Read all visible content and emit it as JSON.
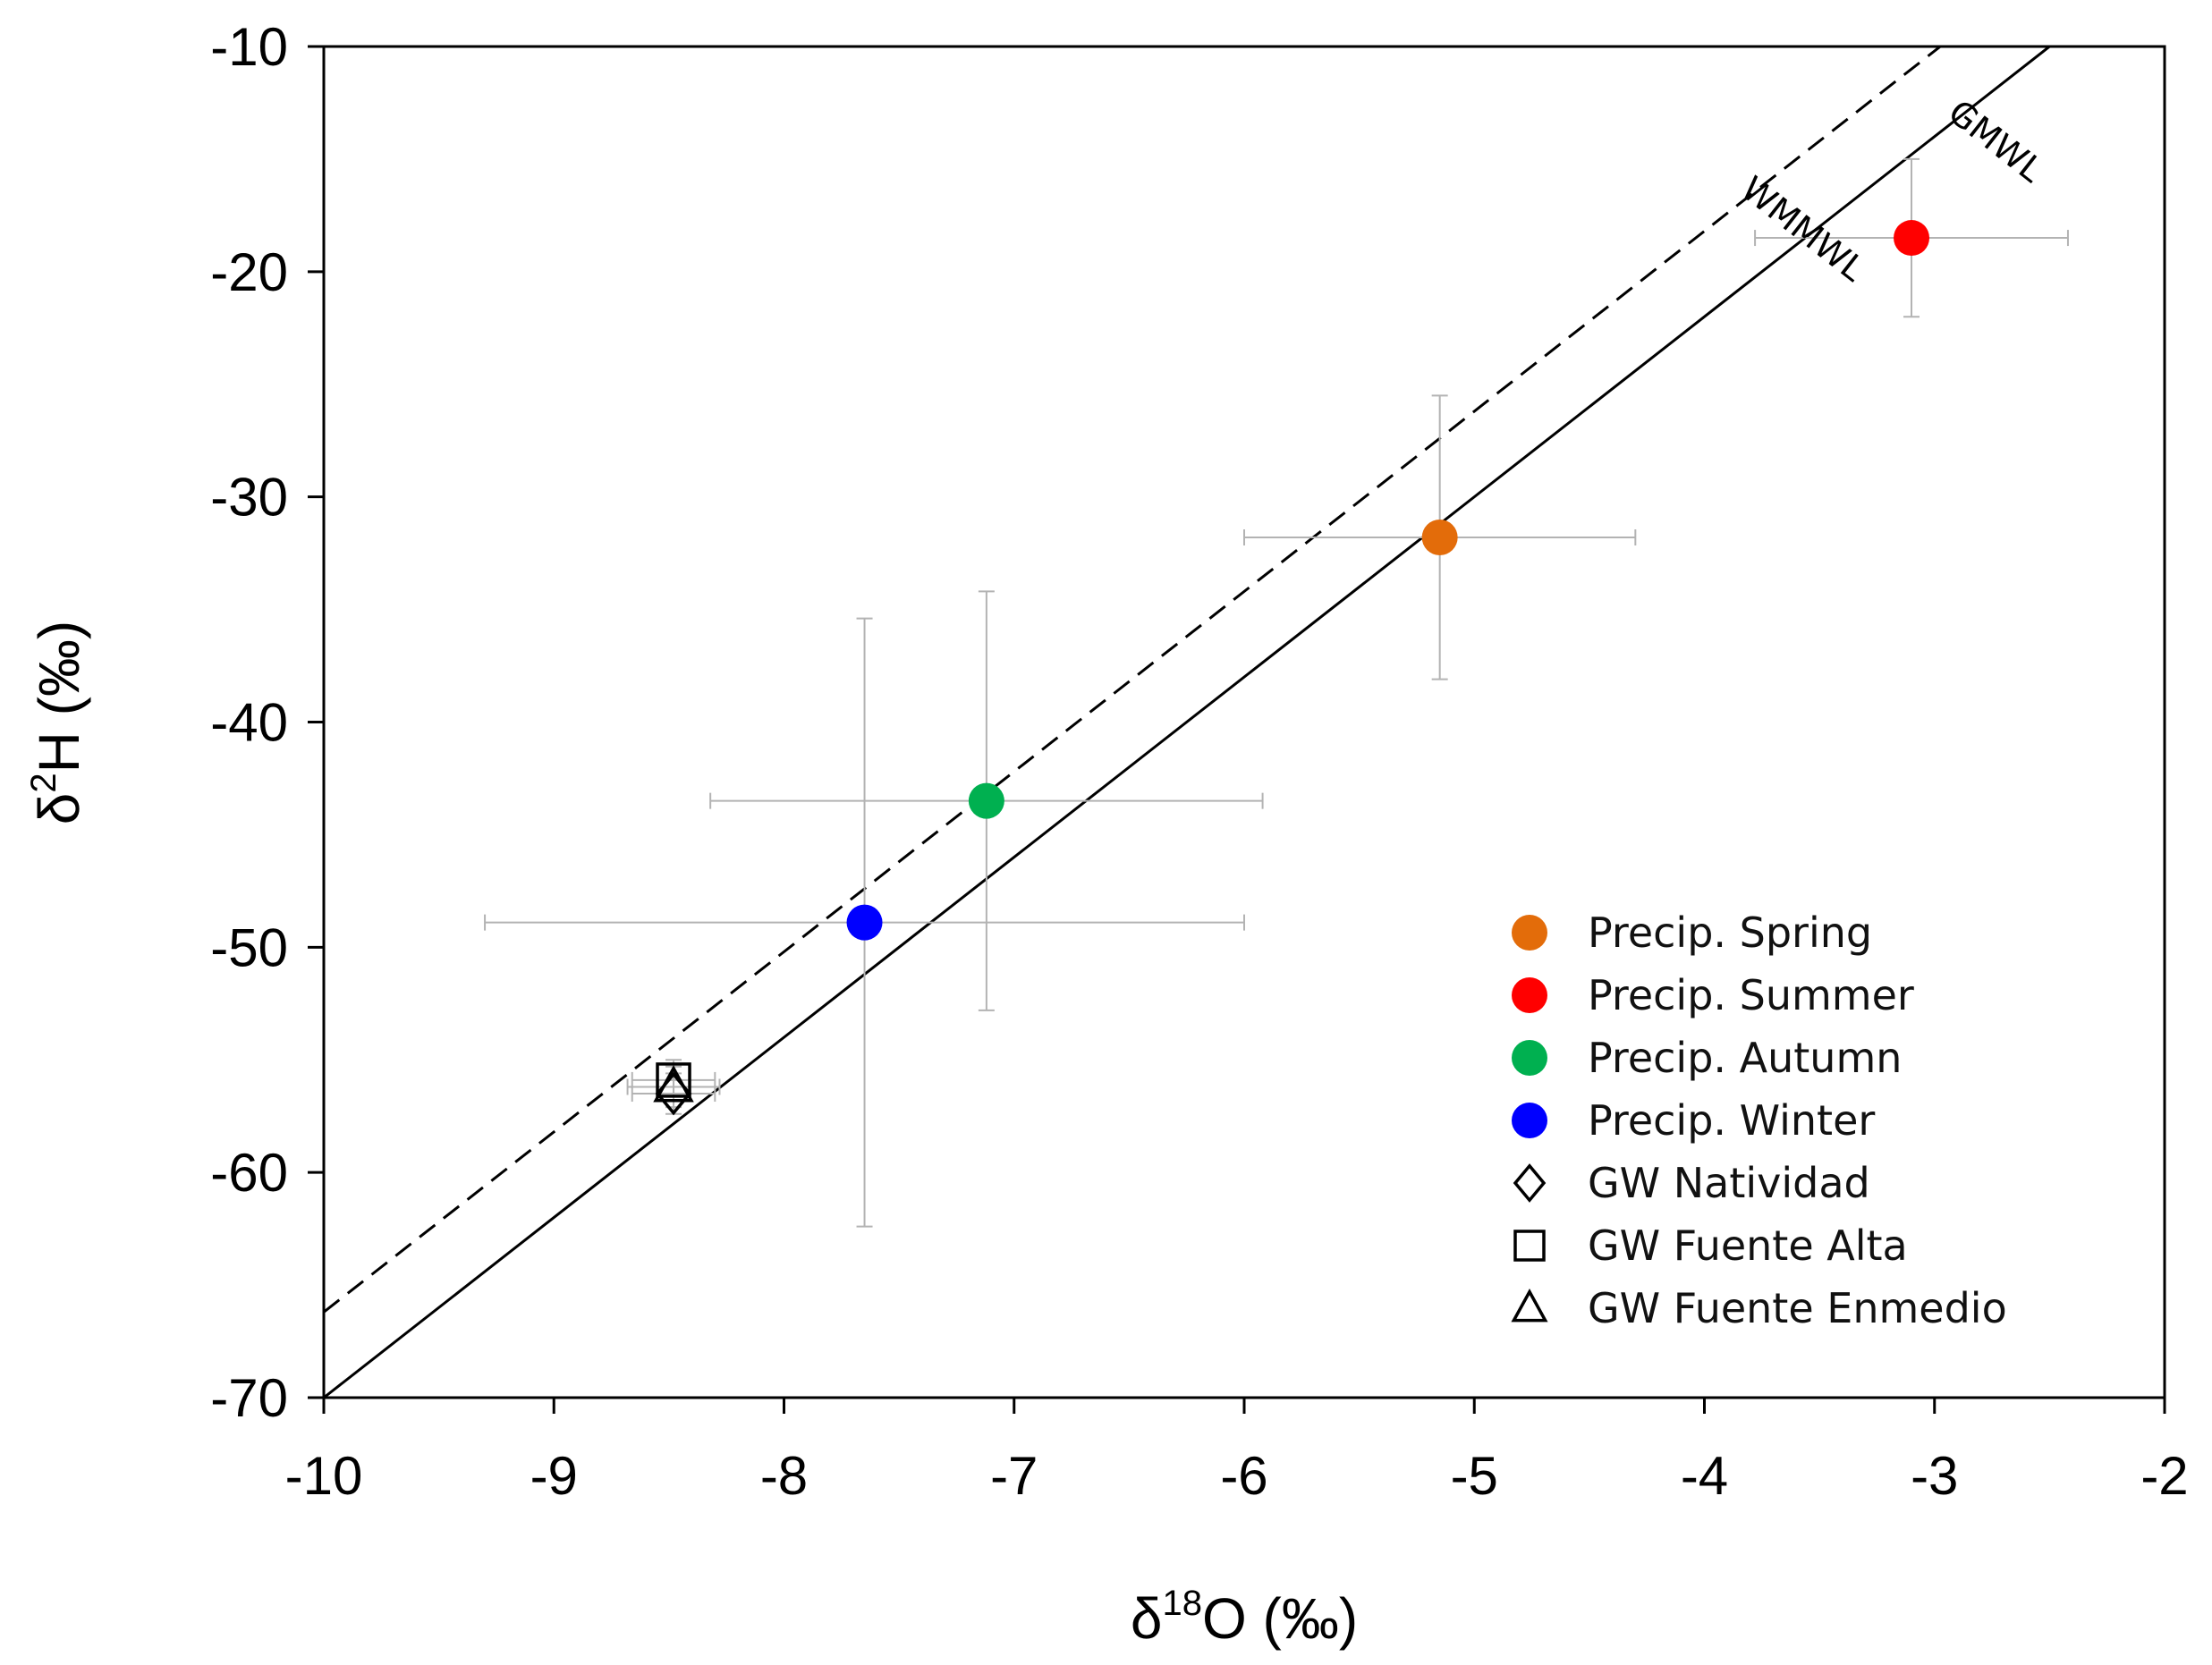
{
  "chart_data": {
    "type": "scatter",
    "title": "",
    "xlabel": "δ¹⁸O (‰)",
    "ylabel": "δ²H (‰)",
    "xlim": [
      -10,
      -2
    ],
    "ylim": [
      -70,
      -10
    ],
    "xticks": [
      -10,
      -9,
      -8,
      -7,
      -6,
      -5,
      -4,
      -3,
      -2
    ],
    "yticks": [
      -10,
      -20,
      -30,
      -40,
      -50,
      -60,
      -70
    ],
    "grid": false,
    "legend_position": "bottom-right",
    "reference_lines": [
      {
        "name": "GMWL",
        "slope": 8,
        "intercept": 10,
        "style": "solid",
        "color": "#000000"
      },
      {
        "name": "WMMWL",
        "slope": 8,
        "intercept": 13.8,
        "style": "dashed",
        "color": "#000000"
      }
    ],
    "series": [
      {
        "name": "Precip. Spring",
        "marker": "circle",
        "color": "#E36C0A",
        "x": -5.15,
        "y": -31.8,
        "x_err": 0.85,
        "y_err_low": 6.3,
        "y_err_high": 6.3
      },
      {
        "name": "Precip. Summer",
        "marker": "circle",
        "color": "#FF0000",
        "x": -3.1,
        "y": -18.5,
        "x_err": 0.68,
        "y_err_low": 3.5,
        "y_err_high": 3.5
      },
      {
        "name": "Precip. Autumn",
        "marker": "circle",
        "color": "#00B050",
        "x": -7.12,
        "y": -43.5,
        "x_err": 1.2,
        "y_err_low": 9.3,
        "y_err_high": 9.3
      },
      {
        "name": "Precip. Winter",
        "marker": "circle",
        "color": "#0000FF",
        "x": -7.65,
        "y": -48.9,
        "x_err": 1.65,
        "y_err_low": 13.5,
        "y_err_high": 13.5
      },
      {
        "name": "GW Natividad",
        "marker": "diamond",
        "color": "#000000",
        "x": -8.48,
        "y": -56.5,
        "x_err": 0.18,
        "y_err_low": 0.9,
        "y_err_high": 0.9
      },
      {
        "name": "GW Fuente Alta",
        "marker": "square",
        "color": "#000000",
        "x": -8.48,
        "y": -55.9,
        "x_err": 0.18,
        "y_err_low": 0.9,
        "y_err_high": 0.9
      },
      {
        "name": "GW Fuente Enmedio",
        "marker": "triangle",
        "color": "#000000",
        "x": -8.48,
        "y": -56.2,
        "x_err": 0.2,
        "y_err_low": 0.9,
        "y_err_high": 0.9
      }
    ],
    "error_bar_color": "#B3B3B3"
  },
  "axis_titles": {
    "x": {
      "prefix": "δ",
      "sup": "18",
      "suffix": "O (‰)"
    },
    "y": {
      "prefix": "δ",
      "sup": "2",
      "suffix": "H (‰)"
    }
  }
}
